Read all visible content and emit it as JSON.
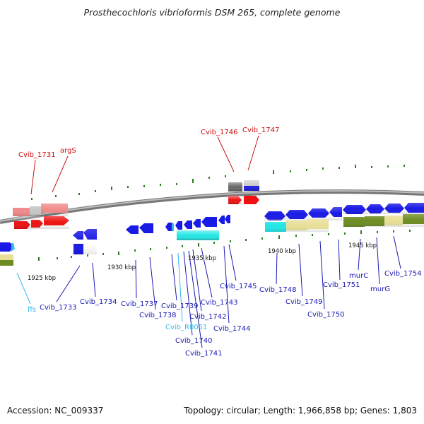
{
  "title": "Prosthecochloris vibrioformis DSM 265, complete genome",
  "accession": "Accession: NC_009337",
  "summary": "Topology: circular; Length: 1,966,858 bp; Genes: 1,803",
  "colors": {
    "backbone": "#888888",
    "tick": "#2e7d1e",
    "blue": "#1a1ae6",
    "red": "#ee1111",
    "red_light": "#f08a8a",
    "gray_light": "#c8c8c8",
    "gray_dark": "#666666",
    "cyan": "#22e6e6",
    "khaki": "#e8df98",
    "olive": "#6e8c22",
    "label_blue": "#1a1ab4",
    "label_red": "#cc1111",
    "label_cyan": "#33bbee"
  },
  "scale_labels": [
    "1925 kbp",
    "1930 kbp",
    "1935 kbp",
    "1940 kbp",
    "1945 kbp"
  ],
  "gene_labels": {
    "cvib_1731": "Cvib_1731",
    "args": "argS",
    "cvib_1746": "Cvib_1746",
    "cvib_1747": "Cvib_1747",
    "ffs": "ffs",
    "cvib_1733": "Cvib_1733",
    "cvib_1734": "Cvib_1734",
    "cvib_1737": "Cvib_1737",
    "cvib_1738": "Cvib_1738",
    "cvib_1739": "Cvib_1739",
    "cvib_r0051": "Cvib_R0051",
    "cvib_1740": "Cvib_1740",
    "cvib_1741": "Cvib_1741",
    "cvib_1742": "Cvib_1742",
    "cvib_1743": "Cvib_1743",
    "cvib_1744": "Cvib_1744",
    "cvib_1745": "Cvib_1745",
    "cvib_1748": "Cvib_1748",
    "cvib_1749": "Cvib_1749",
    "cvib_1750": "Cvib_1750",
    "cvib_1751": "Cvib_1751",
    "murc": "murC",
    "murg": "murG",
    "cvib_1754": "Cvib_1754"
  }
}
